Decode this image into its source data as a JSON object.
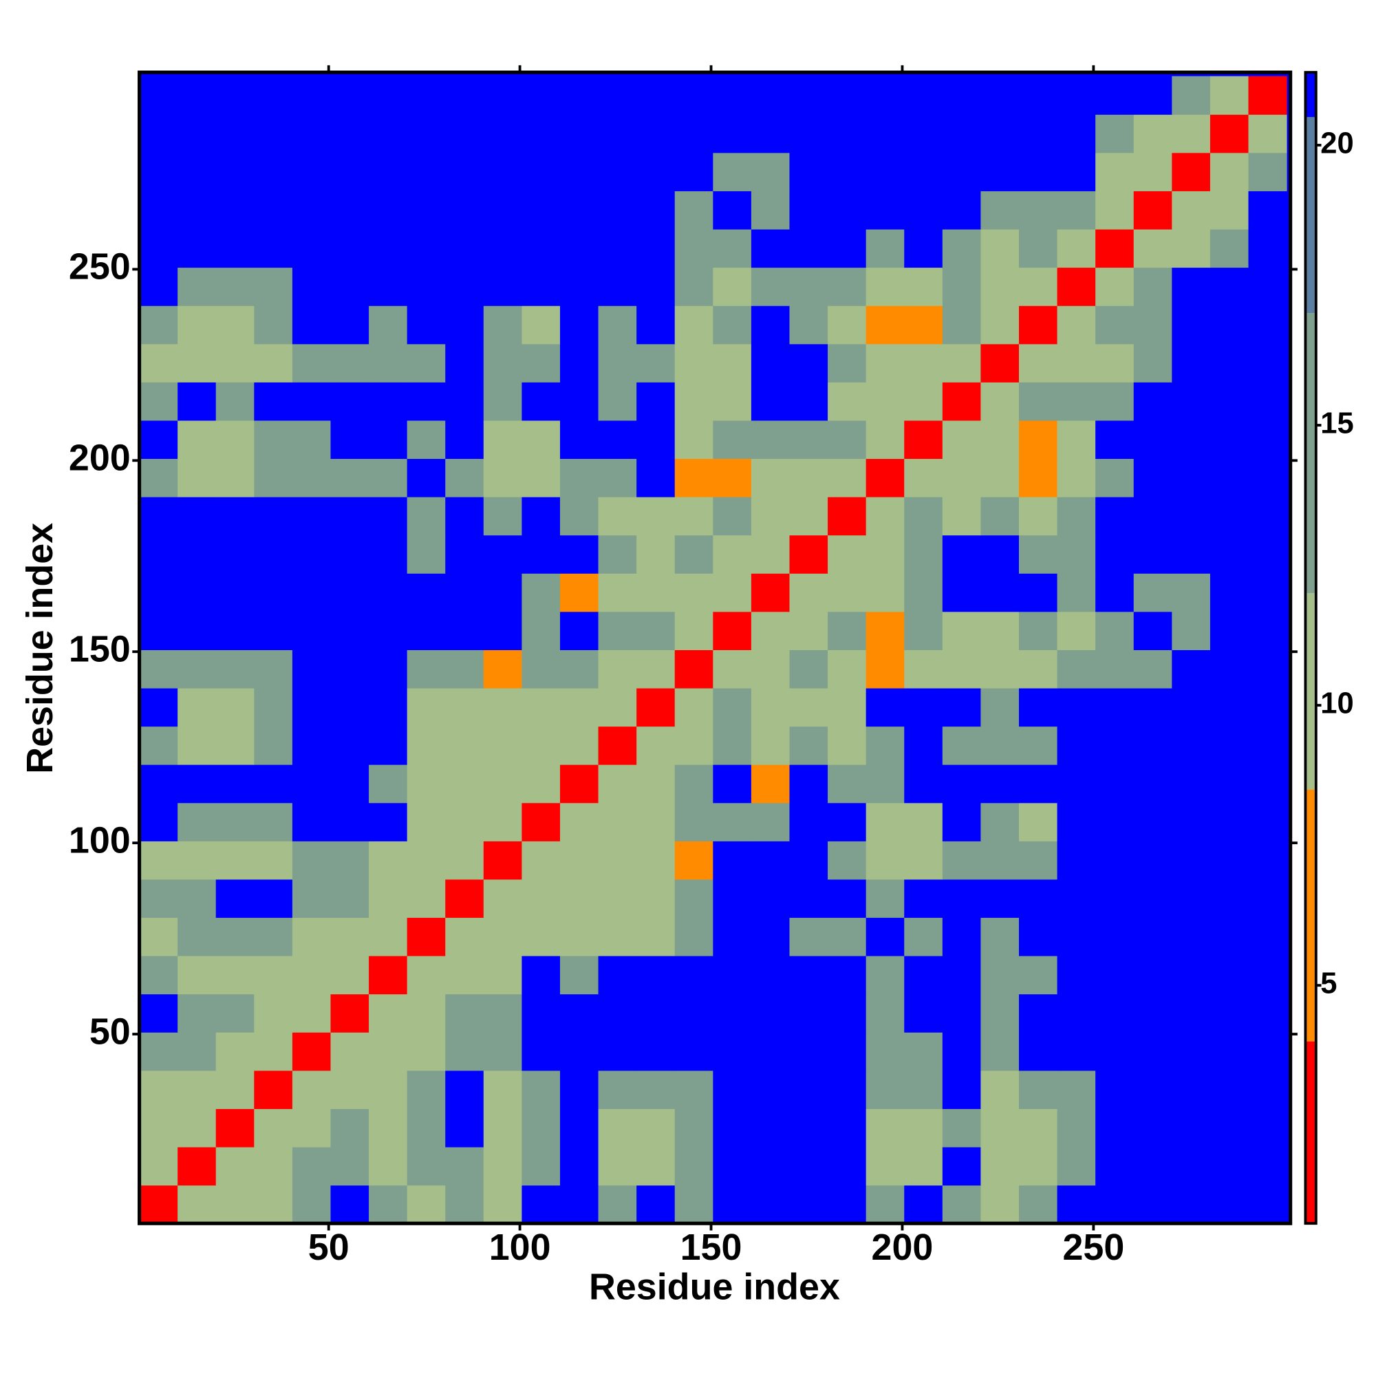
{
  "chart_data": {
    "type": "heatmap",
    "xlabel": "Residue index",
    "ylabel": "Residue index",
    "xlim": [
      0.5,
      301.5
    ],
    "ylim": [
      0.5,
      301.5
    ],
    "xticks": [
      50,
      100,
      150,
      200,
      250
    ],
    "yticks": [
      50,
      100,
      150,
      200,
      250
    ],
    "xbins": [
      0.5,
      10.5,
      20.5,
      30.5,
      40.5,
      50.5,
      60.5,
      70.5,
      80.5,
      90.5,
      100.5,
      110.5,
      120.5,
      130.5,
      140.5,
      150.5,
      160.5,
      170.5,
      180.5,
      190.5,
      200.5,
      210.5,
      220.5,
      230.5,
      240.5,
      250.5,
      260.5,
      270.5,
      280.5,
      290.5,
      300.5
    ],
    "ybins": [
      0.5,
      10.5,
      20.5,
      30.5,
      40.5,
      50.5,
      60.5,
      70.5,
      80.5,
      90.5,
      100.5,
      110.5,
      120.5,
      130.5,
      140.5,
      150.5,
      160.5,
      170.5,
      180.5,
      190.5,
      200.5,
      210.5,
      220.5,
      230.5,
      240.5,
      250.5,
      260.5,
      270.5,
      280.5,
      290.5,
      300.5
    ],
    "colorbar": {
      "lim": [
        0.75,
        21.3
      ],
      "ticks": [
        5,
        10,
        15,
        20
      ],
      "bounds": [
        4,
        8.5,
        12,
        17,
        20.5
      ],
      "colors": [
        "#ff0000",
        "#ff8c00",
        "#a6bf8a",
        "#7fa08e",
        "#5b7fa3",
        "#0000ff"
      ]
    },
    "values": [
      [
        4,
        9,
        10,
        10,
        14,
        21,
        14,
        10,
        14,
        10,
        21,
        21,
        14,
        21,
        14,
        21,
        21,
        21,
        21,
        14,
        21,
        14,
        10,
        14,
        21,
        21,
        21,
        21,
        21,
        21
      ],
      [
        9,
        4,
        9,
        10,
        14,
        14,
        10,
        14,
        14,
        10,
        14,
        21,
        10,
        10,
        14,
        21,
        21,
        21,
        21,
        10,
        10,
        21,
        10,
        10,
        14,
        21,
        21,
        21,
        21,
        21
      ],
      [
        10,
        9,
        4,
        9,
        10,
        14,
        10,
        14,
        21,
        10,
        14,
        21,
        10,
        10,
        14,
        21,
        21,
        21,
        21,
        10,
        10,
        14,
        10,
        10,
        14,
        21,
        21,
        21,
        21,
        21
      ],
      [
        10,
        10,
        9,
        4,
        9,
        10,
        10,
        14,
        21,
        10,
        14,
        21,
        14,
        14,
        14,
        21,
        21,
        21,
        21,
        14,
        14,
        21,
        10,
        14,
        14,
        21,
        21,
        21,
        21,
        21
      ],
      [
        14,
        14,
        10,
        9,
        4,
        9,
        10,
        10,
        14,
        14,
        21,
        21,
        21,
        21,
        21,
        21,
        21,
        21,
        21,
        14,
        14,
        21,
        14,
        21,
        21,
        21,
        21,
        21,
        21,
        21
      ],
      [
        21,
        14,
        14,
        10,
        9,
        4,
        9,
        10,
        14,
        14,
        21,
        21,
        21,
        21,
        21,
        21,
        21,
        21,
        21,
        14,
        21,
        21,
        14,
        21,
        21,
        21,
        21,
        21,
        21,
        21
      ],
      [
        14,
        10,
        10,
        10,
        10,
        9,
        4,
        9,
        10,
        10,
        21,
        14,
        21,
        21,
        21,
        21,
        21,
        21,
        21,
        14,
        21,
        21,
        14,
        14,
        21,
        21,
        21,
        21,
        21,
        21
      ],
      [
        10,
        14,
        14,
        14,
        10,
        10,
        9,
        4,
        9,
        10,
        10,
        10,
        10,
        10,
        14,
        21,
        21,
        14,
        14,
        21,
        14,
        21,
        14,
        21,
        21,
        21,
        21,
        21,
        21,
        21
      ],
      [
        14,
        14,
        21,
        21,
        14,
        14,
        10,
        9,
        4,
        9,
        10,
        10,
        10,
        10,
        14,
        21,
        21,
        21,
        21,
        14,
        21,
        21,
        21,
        21,
        21,
        21,
        21,
        21,
        21,
        21
      ],
      [
        10,
        10,
        10,
        10,
        14,
        14,
        10,
        10,
        9,
        4,
        9,
        10,
        10,
        10,
        7,
        21,
        21,
        21,
        14,
        10,
        10,
        14,
        14,
        14,
        21,
        21,
        21,
        21,
        21,
        21
      ],
      [
        21,
        14,
        14,
        14,
        21,
        21,
        21,
        10,
        10,
        9,
        4,
        9,
        10,
        10,
        14,
        14,
        14,
        21,
        21,
        10,
        10,
        21,
        14,
        10,
        21,
        21,
        21,
        21,
        21,
        21
      ],
      [
        21,
        21,
        21,
        21,
        21,
        21,
        14,
        10,
        10,
        10,
        9,
        4,
        9,
        10,
        14,
        21,
        7,
        21,
        14,
        14,
        21,
        21,
        21,
        21,
        21,
        21,
        21,
        21,
        21,
        21
      ],
      [
        14,
        10,
        10,
        14,
        21,
        21,
        21,
        10,
        10,
        10,
        10,
        9,
        4,
        9,
        10,
        14,
        10,
        14,
        10,
        14,
        21,
        14,
        14,
        14,
        21,
        21,
        21,
        21,
        21,
        21
      ],
      [
        21,
        10,
        10,
        14,
        21,
        21,
        21,
        10,
        10,
        10,
        10,
        10,
        9,
        4,
        9,
        14,
        10,
        10,
        10,
        21,
        21,
        21,
        14,
        21,
        21,
        21,
        21,
        21,
        21,
        21
      ],
      [
        14,
        14,
        14,
        14,
        21,
        21,
        21,
        14,
        14,
        7,
        14,
        14,
        10,
        9,
        4,
        9,
        10,
        14,
        10,
        7,
        10,
        10,
        10,
        10,
        14,
        14,
        14,
        21,
        21,
        21
      ],
      [
        21,
        21,
        21,
        21,
        21,
        21,
        21,
        21,
        21,
        21,
        14,
        21,
        14,
        14,
        9,
        4,
        9,
        10,
        14,
        7,
        14,
        10,
        10,
        14,
        10,
        14,
        21,
        14,
        21,
        21
      ],
      [
        21,
        21,
        21,
        21,
        21,
        21,
        21,
        21,
        21,
        21,
        14,
        7,
        10,
        10,
        10,
        9,
        4,
        9,
        10,
        10,
        14,
        21,
        21,
        21,
        14,
        21,
        14,
        14,
        21,
        21
      ],
      [
        21,
        21,
        21,
        21,
        21,
        21,
        21,
        14,
        21,
        21,
        21,
        21,
        14,
        10,
        14,
        10,
        9,
        4,
        9,
        10,
        14,
        21,
        21,
        14,
        14,
        21,
        21,
        21,
        21,
        21
      ],
      [
        21,
        21,
        21,
        21,
        21,
        21,
        21,
        14,
        21,
        14,
        21,
        14,
        10,
        10,
        10,
        14,
        10,
        9,
        4,
        9,
        14,
        10,
        14,
        10,
        14,
        21,
        21,
        21,
        21,
        21
      ],
      [
        14,
        10,
        10,
        14,
        14,
        14,
        14,
        21,
        14,
        10,
        10,
        14,
        14,
        21,
        7,
        7,
        10,
        10,
        9,
        4,
        9,
        10,
        10,
        7,
        10,
        14,
        21,
        21,
        21,
        21
      ],
      [
        21,
        10,
        10,
        14,
        14,
        21,
        21,
        14,
        21,
        10,
        10,
        21,
        21,
        21,
        10,
        14,
        14,
        14,
        14,
        9,
        4,
        9,
        10,
        7,
        10,
        21,
        21,
        21,
        21,
        21
      ],
      [
        14,
        21,
        14,
        21,
        21,
        21,
        21,
        21,
        21,
        14,
        21,
        21,
        14,
        21,
        10,
        10,
        21,
        21,
        10,
        10,
        9,
        4,
        9,
        14,
        14,
        14,
        21,
        21,
        21,
        21
      ],
      [
        10,
        10,
        10,
        10,
        14,
        14,
        14,
        14,
        21,
        14,
        14,
        21,
        14,
        14,
        10,
        10,
        21,
        21,
        14,
        10,
        10,
        9,
        4,
        9,
        10,
        10,
        14,
        21,
        21,
        21
      ],
      [
        14,
        10,
        10,
        14,
        21,
        21,
        14,
        21,
        21,
        14,
        10,
        21,
        14,
        21,
        10,
        14,
        21,
        14,
        10,
        7,
        7,
        14,
        9,
        4,
        9,
        14,
        14,
        21,
        21,
        21
      ],
      [
        21,
        14,
        14,
        14,
        21,
        21,
        21,
        21,
        21,
        21,
        21,
        21,
        21,
        21,
        14,
        10,
        14,
        14,
        14,
        10,
        10,
        14,
        10,
        9,
        4,
        9,
        14,
        21,
        21,
        21
      ],
      [
        21,
        21,
        21,
        21,
        21,
        21,
        21,
        21,
        21,
        21,
        21,
        21,
        21,
        21,
        14,
        14,
        21,
        21,
        21,
        14,
        21,
        14,
        10,
        14,
        9,
        4,
        9,
        10,
        14,
        21
      ],
      [
        21,
        21,
        21,
        21,
        21,
        21,
        21,
        21,
        21,
        21,
        21,
        21,
        21,
        21,
        14,
        21,
        14,
        21,
        21,
        21,
        21,
        21,
        14,
        14,
        14,
        9,
        4,
        9,
        10,
        21
      ],
      [
        21,
        21,
        21,
        21,
        21,
        21,
        21,
        21,
        21,
        21,
        21,
        21,
        21,
        21,
        21,
        14,
        14,
        21,
        21,
        21,
        21,
        21,
        21,
        21,
        21,
        10,
        9,
        4,
        9,
        14
      ],
      [
        21,
        21,
        21,
        21,
        21,
        21,
        21,
        21,
        21,
        21,
        21,
        21,
        21,
        21,
        21,
        21,
        21,
        21,
        21,
        21,
        21,
        21,
        21,
        21,
        21,
        14,
        10,
        9,
        4,
        9
      ],
      [
        21,
        21,
        21,
        21,
        21,
        21,
        21,
        21,
        21,
        21,
        21,
        21,
        21,
        21,
        21,
        21,
        21,
        21,
        21,
        21,
        21,
        21,
        21,
        21,
        21,
        21,
        21,
        14,
        9,
        4
      ]
    ]
  }
}
